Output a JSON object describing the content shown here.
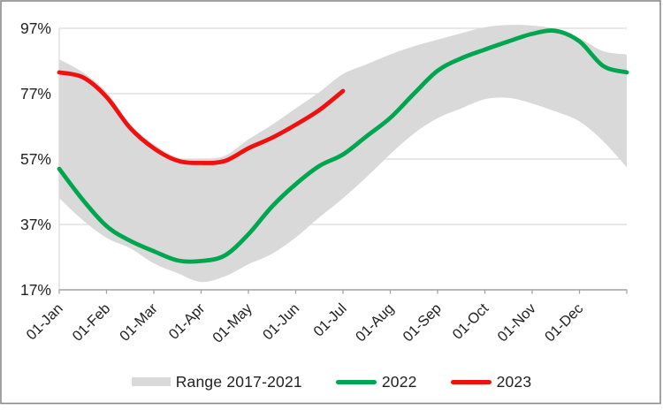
{
  "chart_data": {
    "type": "area",
    "description": "Seasonality chart: grey band shows the 2017-2021 min-max range, green line 2022 full year, red line 2023 through 01-Jul",
    "unit": "%",
    "m_points": [
      0,
      0.5,
      1,
      1.5,
      2,
      2.5,
      3,
      3.5,
      4,
      4.5,
      5,
      5.5,
      6,
      6.5,
      7,
      7.5,
      8,
      8.5,
      9,
      9.5,
      10,
      10.5,
      11,
      11.5,
      12
    ],
    "series": [
      {
        "name": "Range 2017-2021",
        "kind": "band",
        "color": "#d9d9d9",
        "upper": [
          87.5,
          83.5,
          77.5,
          67.5,
          61.5,
          57.5,
          57,
          58,
          63,
          67.5,
          72.5,
          77.5,
          83,
          86,
          89,
          91.5,
          93.5,
          95.5,
          97.3,
          98,
          97.8,
          96.8,
          94,
          90,
          89
        ],
        "lower": [
          45,
          38.3,
          32.9,
          29.7,
          25.1,
          22.1,
          19.4,
          21.1,
          24.8,
          28,
          33,
          39.2,
          45,
          51.5,
          58.5,
          64.8,
          69.5,
          72.5,
          75.3,
          75.7,
          74,
          71.5,
          68.5,
          62.5,
          54.5
        ]
      },
      {
        "name": "2022",
        "kind": "line",
        "color": "#00a64f",
        "values": [
          54,
          44.5,
          36.5,
          32,
          28.8,
          26,
          25.8,
          27.5,
          34,
          42.5,
          49.3,
          54.9,
          58.4,
          64,
          69.6,
          77,
          84,
          87.8,
          90.5,
          93,
          95.3,
          96.2,
          93,
          85.5,
          83.5
        ]
      },
      {
        "name": "2023",
        "kind": "line",
        "color": "#ef1010",
        "values": [
          83.5,
          82,
          76,
          66.5,
          60.3,
          56.5,
          55.8,
          56.4,
          60.3,
          63.5,
          67.5,
          72,
          77.8
        ]
      }
    ],
    "x_axis": {
      "tick_labels": [
        "01-Jan",
        "01-Feb",
        "01-Mar",
        "01-Apr",
        "01-May",
        "01-Jun",
        "01-Jul",
        "01-Aug",
        "01-Sep",
        "01-Oct",
        "01-Nov",
        "01-Dec"
      ],
      "label_rotation_deg": -45
    },
    "y_axis": {
      "tick_labels": [
        "97%",
        "77%",
        "57%",
        "37%",
        "17%"
      ],
      "tick_values": [
        97,
        77,
        57,
        37,
        17
      ]
    },
    "ylim": [
      17,
      99
    ],
    "grid": true,
    "legend_position": "bottom",
    "colors": {
      "grid": "#d9d9d9",
      "axis": "#a3a3a3",
      "text": "#1f1f1f",
      "border": "#8a8a8a",
      "background": "#ffffff"
    }
  },
  "legend": {
    "items": [
      {
        "label": "Range 2017-2021",
        "swatch": "band"
      },
      {
        "label": "2022",
        "swatch": "line"
      },
      {
        "label": "2023",
        "swatch": "line"
      }
    ]
  }
}
